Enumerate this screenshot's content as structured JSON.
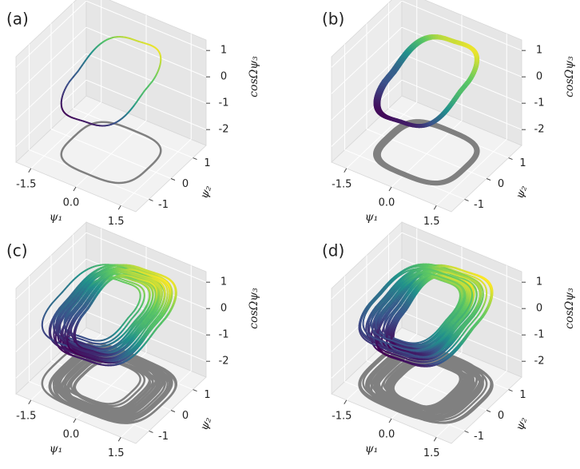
{
  "chart_data": [
    {
      "type": "line3d",
      "panel_label": "(a)",
      "xlabel": "ψ₁",
      "ylabel": "ψ₂",
      "zlabel": "cosΩψ₃",
      "xlim": [
        -2,
        2
      ],
      "ylim": [
        -1.6,
        1.6
      ],
      "zlim": [
        -2.6,
        1.4
      ],
      "xticks": [
        -1.5,
        {
          "value": 0,
          "label": "0.0"
        },
        1.5
      ],
      "yticks": [
        -1,
        0,
        1
      ],
      "zticks": [
        -2,
        -1,
        0,
        1
      ],
      "grid": true
    },
    {
      "type": "line3d",
      "panel_label": "(b)",
      "xlabel": "ψ₁",
      "ylabel": "ψ₂",
      "zlabel": "cosΩψ₃",
      "xlim": [
        -2,
        2
      ],
      "ylim": [
        -1.6,
        1.6
      ],
      "zlim": [
        -2.6,
        1.4
      ],
      "xticks": [
        -1.5,
        {
          "value": 0,
          "label": "0.0"
        },
        1.5
      ],
      "yticks": [
        -1,
        0,
        1
      ],
      "zticks": [
        -2,
        -1,
        0,
        1
      ],
      "grid": true
    },
    {
      "type": "line3d",
      "panel_label": "(c)",
      "xlabel": "ψ₁",
      "ylabel": "ψ₂",
      "zlabel": "cosΩψ₃",
      "xlim": [
        -2,
        2
      ],
      "ylim": [
        -1.6,
        1.6
      ],
      "zlim": [
        -2.6,
        1.4
      ],
      "xticks": [
        -1.5,
        {
          "value": 0,
          "label": "0.0"
        },
        1.5
      ],
      "yticks": [
        -1,
        0,
        1
      ],
      "zticks": [
        -2,
        -1,
        0,
        1
      ],
      "grid": true
    },
    {
      "type": "line3d",
      "panel_label": "(d)",
      "xlabel": "ψ₁",
      "ylabel": "ψ₂",
      "zlabel": "cosΩψ₃",
      "xlim": [
        -2,
        2
      ],
      "ylim": [
        -1.6,
        1.6
      ],
      "zlim": [
        -2.6,
        1.4
      ],
      "xticks": [
        -1.5,
        {
          "value": 0,
          "label": "0.0"
        },
        1.5
      ],
      "yticks": [
        -1,
        0,
        1
      ],
      "zticks": [
        -2,
        -1,
        0,
        1
      ],
      "grid": true
    }
  ]
}
